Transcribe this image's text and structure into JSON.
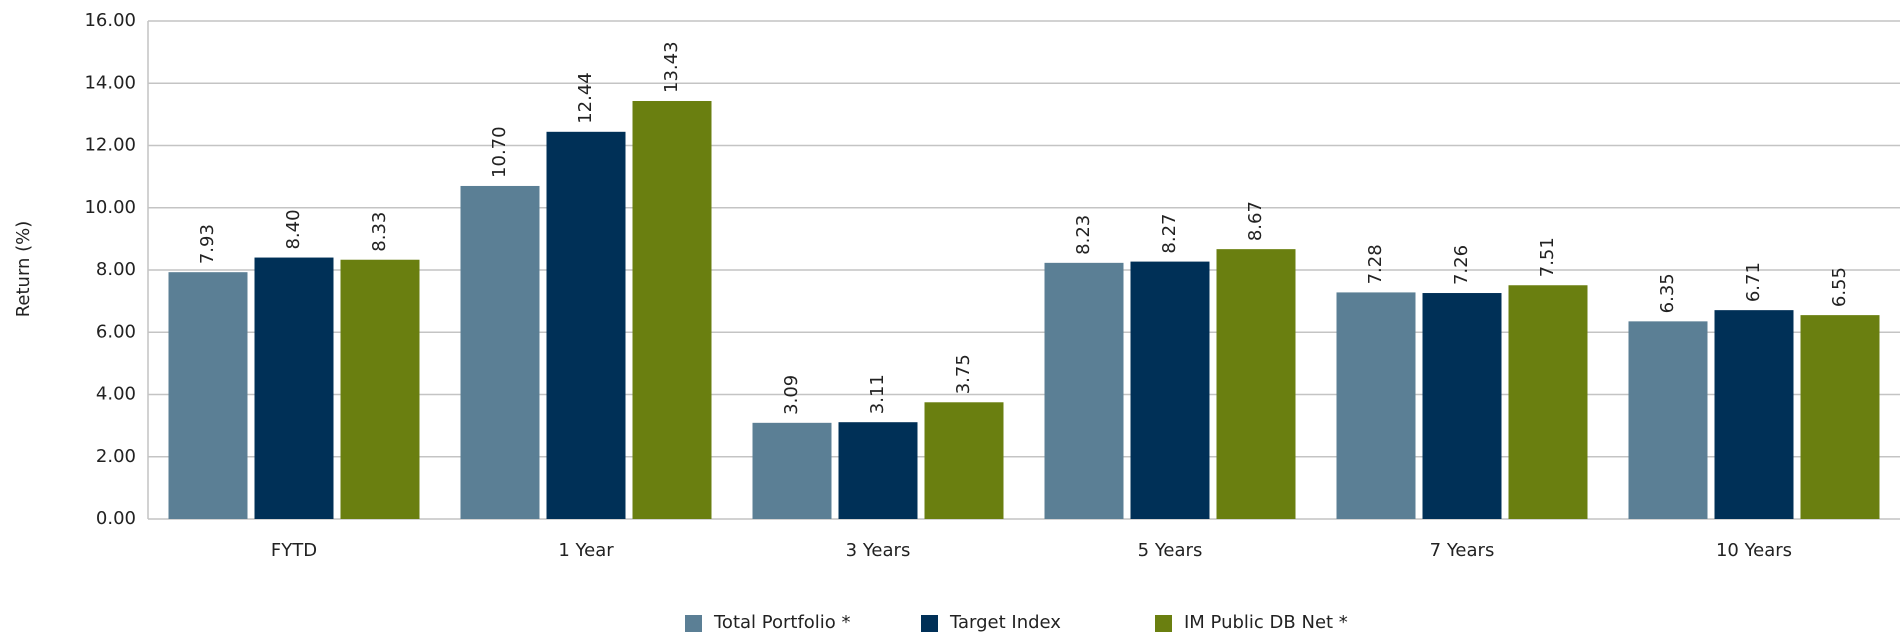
{
  "chart_data": {
    "type": "bar",
    "y_label": "Return (%)",
    "categories": [
      "FYTD",
      "1 Year",
      "3 Years",
      "5 Years",
      "7 Years",
      "10 Years"
    ],
    "series": [
      {
        "name": "Total Portfolio *",
        "color": "#5b7f95",
        "values": [
          7.93,
          10.7,
          3.09,
          8.23,
          7.28,
          6.35
        ],
        "value_labels": [
          "7.93",
          "10.70",
          "3.09",
          "8.23",
          "7.28",
          "6.35"
        ]
      },
      {
        "name": "Target Index",
        "color": "#003057",
        "values": [
          8.4,
          12.44,
          3.11,
          8.27,
          7.26,
          6.71
        ],
        "value_labels": [
          "8.40",
          "12.44",
          "3.11",
          "8.27",
          "7.26",
          "6.71"
        ]
      },
      {
        "name": "IM Public DB Net *",
        "color": "#6a7f10",
        "values": [
          8.33,
          13.43,
          3.75,
          8.67,
          7.51,
          6.55
        ],
        "value_labels": [
          "8.33",
          "13.43",
          "3.75",
          "8.67",
          "7.51",
          "6.55"
        ]
      }
    ],
    "ylim": [
      0,
      16
    ],
    "yticks": [
      {
        "value": 0,
        "label": "0.00"
      },
      {
        "value": 2,
        "label": "2.00"
      },
      {
        "value": 4,
        "label": "4.00"
      },
      {
        "value": 6,
        "label": "6.00"
      },
      {
        "value": 8,
        "label": "8.00"
      },
      {
        "value": 10,
        "label": "10.00"
      },
      {
        "value": 12,
        "label": "12.00"
      },
      {
        "value": 14,
        "label": "14.00"
      },
      {
        "value": 16,
        "label": "16.00"
      }
    ],
    "grid": true,
    "legend": "bottom"
  }
}
